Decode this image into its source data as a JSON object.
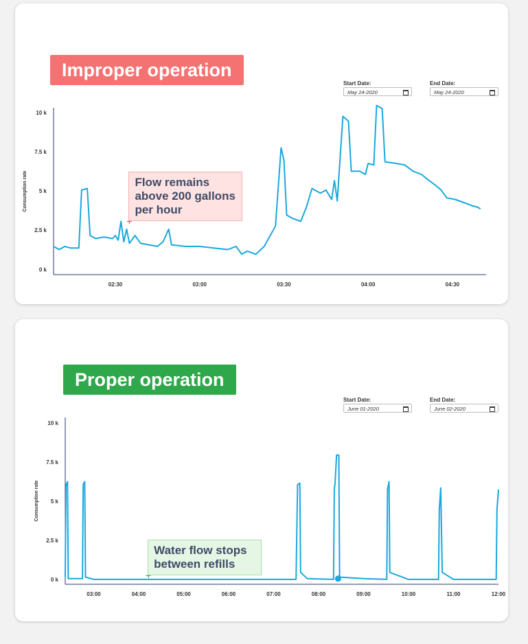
{
  "chart_data": [
    {
      "type": "line",
      "title": "Improper operation",
      "start_date_label": "Start Date:",
      "start_date": "May 24-2020",
      "end_date_label": "End Date:",
      "end_date": "May 24-2020",
      "y_label": "Consumption rate",
      "color": "#1aa7de",
      "x": [
        "02:08",
        "02:10",
        "02:12",
        "02:14",
        "02:17",
        "02:18",
        "02:20",
        "02:21",
        "02:23",
        "02:26",
        "02:29",
        "02:30",
        "02:31",
        "02:32",
        "02:33",
        "02:34",
        "02:35",
        "02:37",
        "02:39",
        "02:42",
        "02:45",
        "02:47",
        "02:49",
        "02:50",
        "02:55",
        "03:00",
        "03:05",
        "03:10",
        "03:13",
        "03:15",
        "03:17",
        "03:20",
        "03:23",
        "03:27",
        "03:29",
        "03:30",
        "03:31",
        "03:33",
        "03:36",
        "03:38",
        "03:40",
        "03:43",
        "03:45",
        "03:47",
        "03:48",
        "03:49",
        "03:51",
        "03:53",
        "03:54",
        "03:57",
        "03:59",
        "04:00",
        "04:02",
        "04:03",
        "04:05",
        "04:06",
        "04:10",
        "04:13",
        "04:16",
        "04:19",
        "04:21",
        "04:24",
        "04:26",
        "04:28",
        "04:31",
        "04:34",
        "04:37",
        "04:39",
        "04:40"
      ],
      "values": [
        1.5,
        1.3,
        1.5,
        1.4,
        1.4,
        5.1,
        5.2,
        2.2,
        2.0,
        2.1,
        2.0,
        2.2,
        1.9,
        3.1,
        1.8,
        2.6,
        1.7,
        2.2,
        1.7,
        1.6,
        1.5,
        1.8,
        2.6,
        1.6,
        1.5,
        1.5,
        1.4,
        1.3,
        1.5,
        1.0,
        1.2,
        1.0,
        1.5,
        2.8,
        7.8,
        7.0,
        3.5,
        3.3,
        3.1,
        4.0,
        5.2,
        4.9,
        5.1,
        4.5,
        5.7,
        4.4,
        9.8,
        9.5,
        6.3,
        6.3,
        6.1,
        6.8,
        6.7,
        10.5,
        10.3,
        6.9,
        6.8,
        6.7,
        6.3,
        6.1,
        5.8,
        5.4,
        5.1,
        4.6,
        4.5,
        4.3,
        4.1,
        4.0,
        3.9
      ],
      "xlim": [
        "02:08",
        "04:42"
      ],
      "xticks": [
        "02:30",
        "03:00",
        "03:30",
        "04:00",
        "04:30"
      ],
      "ylim": [
        -0.3,
        10.35
      ],
      "yticks": [
        {
          "value": 0,
          "label": "0 k"
        },
        {
          "value": 2.5,
          "label": "2.5 k"
        },
        {
          "value": 5,
          "label": "5 k"
        },
        {
          "value": 7.5,
          "label": "7.5 k"
        },
        {
          "value": 10,
          "label": "10 k"
        }
      ],
      "annotation": {
        "text": "Flow remains above 200 gallons per hour",
        "x": "02:35",
        "y": 3.1
      }
    },
    {
      "type": "line",
      "title": "Proper operation",
      "start_date_label": "Start Date:",
      "start_date": "June 01-2020",
      "end_date_label": "End Date:",
      "end_date": "June 02-2020",
      "y_label": "Consumption rate",
      "color": "#1aa7de",
      "x": [
        "02:22",
        "02:23",
        "02:24",
        "02:25",
        "02:26",
        "02:45",
        "02:46",
        "02:48",
        "02:49",
        "03:00",
        "07:30",
        "07:32",
        "07:35",
        "07:36",
        "07:45",
        "08:20",
        "08:21",
        "08:22",
        "08:24",
        "08:27",
        "08:28",
        "09:00",
        "09:31",
        "09:32",
        "09:34",
        "09:35",
        "10:00",
        "10:40",
        "10:41",
        "10:43",
        "10:45",
        "11:00",
        "11:57",
        "11:58",
        "12:00"
      ],
      "values": [
        0.2,
        6.0,
        6.2,
        6.3,
        0.1,
        0.1,
        6.1,
        6.3,
        0.2,
        0.05,
        0.05,
        6.1,
        6.2,
        0.5,
        0.1,
        0.05,
        5.8,
        6.2,
        8.0,
        8.0,
        0.2,
        0.1,
        0.05,
        5.8,
        6.3,
        0.5,
        0.05,
        0.05,
        4.5,
        5.9,
        0.5,
        0.05,
        0.05,
        4.5,
        5.8
      ],
      "xlim": [
        "02:22",
        "12:00"
      ],
      "xticks": [
        "03:00",
        "04:00",
        "05:00",
        "06:00",
        "07:00",
        "08:00",
        "09:00",
        "10:00",
        "11:00",
        "12:00"
      ],
      "ylim": [
        -0.26,
        10.4
      ],
      "yticks": [
        {
          "value": 0,
          "label": "0 k"
        },
        {
          "value": 2.5,
          "label": "2.5 k"
        },
        {
          "value": 5,
          "label": "5 k"
        },
        {
          "value": 7.5,
          "label": "7.5 k"
        },
        {
          "value": 10,
          "label": "10 k"
        }
      ],
      "annotation": {
        "text": "Water flow stops between refills",
        "x": "04:13",
        "y": 0.3
      },
      "highlight": {
        "x": "08:26",
        "y": 0.1
      }
    }
  ]
}
